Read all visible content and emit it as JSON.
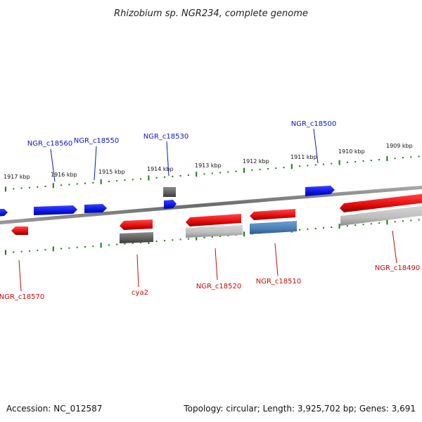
{
  "title": "Rhizobium sp. NGR234, complete genome",
  "accession": "Accession: NC_012587",
  "topology": "Topology: circular; Length: 3,925,702 bp; Genes: 3,691",
  "colors": {
    "forward_gene": "#0a14e6",
    "reverse_gene": "#e60a0a",
    "pseudo_gene": "#646464",
    "rna_gene": "#bdbdbd",
    "steel_gene": "#4a7fb5",
    "tick": "#1a7a1a",
    "label_forward": "#0a14c8",
    "label_reverse": "#c80a0a"
  },
  "scale_labels": [
    "1917 kbp",
    "1916 kbp",
    "1915 kbp",
    "1914 kbp",
    "1913 kbp",
    "1912 kbp",
    "1911 kbp",
    "1910 kbp",
    "1909 kbp"
  ],
  "gene_labels": [
    {
      "name": "NGR_c18560",
      "strand": "forward"
    },
    {
      "name": "NGR_c18550",
      "strand": "forward"
    },
    {
      "name": "NGR_c18530",
      "strand": "forward"
    },
    {
      "name": "NGR_c18500",
      "strand": "forward"
    },
    {
      "name": "NGR_c18570",
      "strand": "reverse"
    },
    {
      "name": "cya2",
      "strand": "reverse"
    },
    {
      "name": "NGR_c18520",
      "strand": "reverse"
    },
    {
      "name": "NGR_c18510",
      "strand": "reverse"
    },
    {
      "name": "NGR_c18490",
      "strand": "reverse"
    }
  ]
}
